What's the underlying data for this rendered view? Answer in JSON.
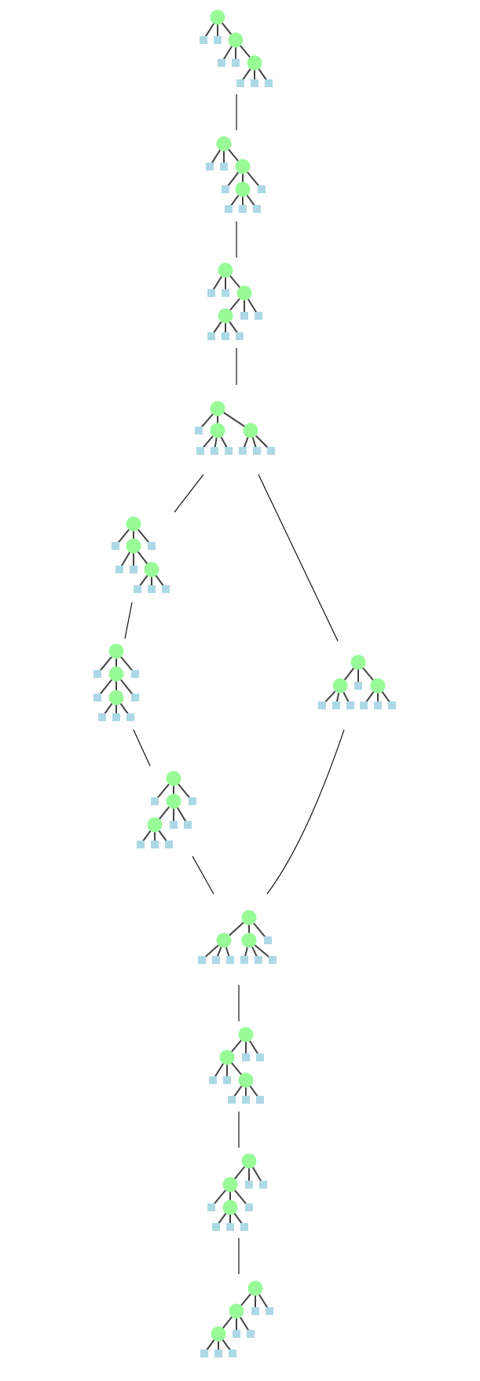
{
  "colors": {
    "background": "#ffffff",
    "internal_node": "#98fb98",
    "leaf_node": "#add8e6",
    "tree_edge": "#444444",
    "connector": "#000000"
  },
  "diagram": {
    "kind": "tree-rotation-graph",
    "node_shapes": {
      "internal": "circle",
      "leaf": "square"
    },
    "trees": [
      {
        "id": "t1"
      },
      {
        "id": "t2"
      },
      {
        "id": "t3"
      },
      {
        "id": "t4"
      },
      {
        "id": "t5"
      },
      {
        "id": "t6"
      },
      {
        "id": "t7"
      },
      {
        "id": "t8"
      },
      {
        "id": "t9"
      },
      {
        "id": "t10"
      },
      {
        "id": "t11"
      },
      {
        "id": "t12"
      }
    ],
    "links": [
      {
        "from": "t1",
        "to": "t2"
      },
      {
        "from": "t2",
        "to": "t3"
      },
      {
        "from": "t3",
        "to": "t4"
      },
      {
        "from": "t4",
        "to": "t5"
      },
      {
        "from": "t4",
        "to": "t6"
      },
      {
        "from": "t5",
        "to": "t7"
      },
      {
        "from": "t7",
        "to": "t8"
      },
      {
        "from": "t8",
        "to": "t9"
      },
      {
        "from": "t6",
        "to": "t9"
      },
      {
        "from": "t9",
        "to": "t10"
      },
      {
        "from": "t10",
        "to": "t11"
      },
      {
        "from": "t11",
        "to": "t12"
      }
    ]
  }
}
